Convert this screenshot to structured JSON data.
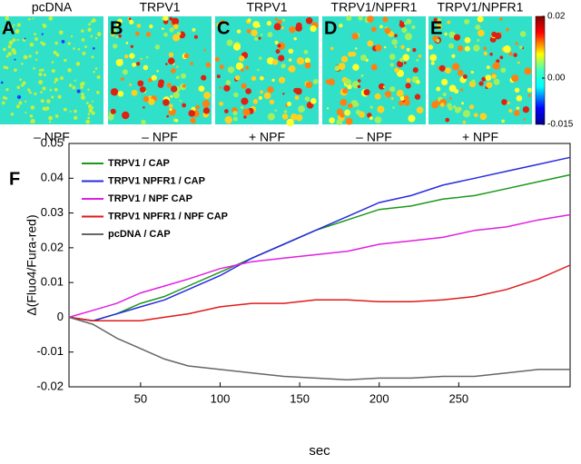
{
  "chart_data": [
    {
      "type": "heatmap",
      "panels": [
        {
          "letter": "A",
          "title": "pcDNA",
          "condition": "– NPF"
        },
        {
          "letter": "B",
          "title": "TRPV1",
          "condition": "– NPF"
        },
        {
          "letter": "C",
          "title": "TRPV1",
          "condition": "+ NPF"
        },
        {
          "letter": "D",
          "title": "TRPV1/NPFR1",
          "condition": "– NPF"
        },
        {
          "letter": "E",
          "title": "TRPV1/NPFR1",
          "condition": "+ NPF"
        }
      ],
      "clim": [
        -0.015,
        0.02
      ],
      "cticks": [
        0.02,
        {
          "value": 0,
          "label": "0.00"
        },
        -0.015
      ]
    },
    {
      "type": "line",
      "title": "F",
      "xlabel": "sec",
      "ylabel": "Δ(Fluo4/Fura-red)",
      "x": [
        5,
        20,
        35,
        50,
        65,
        80,
        100,
        120,
        140,
        160,
        180,
        200,
        220,
        240,
        260,
        280,
        300,
        320
      ],
      "xlim": [
        5,
        320
      ],
      "xticks": [
        50,
        100,
        150,
        200,
        250
      ],
      "ylim": [
        -0.02,
        0.05
      ],
      "yticks": [
        -0.02,
        -0.01,
        0,
        0.01,
        0.02,
        0.03,
        0.04,
        0.05
      ],
      "series": [
        {
          "name": "TRPV1 / CAP",
          "color": "#1a9a1a",
          "values": [
            0,
            -0.001,
            0.001,
            0.004,
            0.006,
            0.009,
            0.013,
            0.017,
            0.021,
            0.025,
            0.028,
            0.031,
            0.032,
            0.034,
            0.035,
            0.037,
            0.039,
            0.041
          ]
        },
        {
          "name": "TRPV1 NPFR1 / CAP",
          "color": "#2a2ae0",
          "values": [
            0,
            -0.001,
            0.001,
            0.003,
            0.005,
            0.008,
            0.012,
            0.017,
            0.021,
            0.025,
            0.029,
            0.033,
            0.035,
            0.038,
            0.04,
            0.042,
            0.044,
            0.046
          ]
        },
        {
          "name": "TRPV1 / NPF CAP",
          "color": "#e020e0",
          "values": [
            0,
            0.002,
            0.004,
            0.007,
            0.009,
            0.011,
            0.014,
            0.016,
            0.017,
            0.018,
            0.019,
            0.021,
            0.022,
            0.023,
            0.025,
            0.026,
            0.028,
            0.0295
          ]
        },
        {
          "name": "TRPV1 NPFR1 / NPF CAP",
          "color": "#e01a1a",
          "values": [
            0,
            -0.001,
            -0.001,
            -0.001,
            0,
            0.001,
            0.003,
            0.004,
            0.004,
            0.005,
            0.005,
            0.0045,
            0.0045,
            0.005,
            0.006,
            0.008,
            0.011,
            0.015
          ]
        },
        {
          "name": "pcDNA / CAP",
          "color": "#666666",
          "values": [
            0,
            -0.002,
            -0.006,
            -0.009,
            -0.012,
            -0.014,
            -0.015,
            -0.016,
            -0.017,
            -0.0175,
            -0.018,
            -0.0175,
            -0.0175,
            -0.017,
            -0.017,
            -0.016,
            -0.015,
            -0.015
          ]
        }
      ]
    }
  ]
}
